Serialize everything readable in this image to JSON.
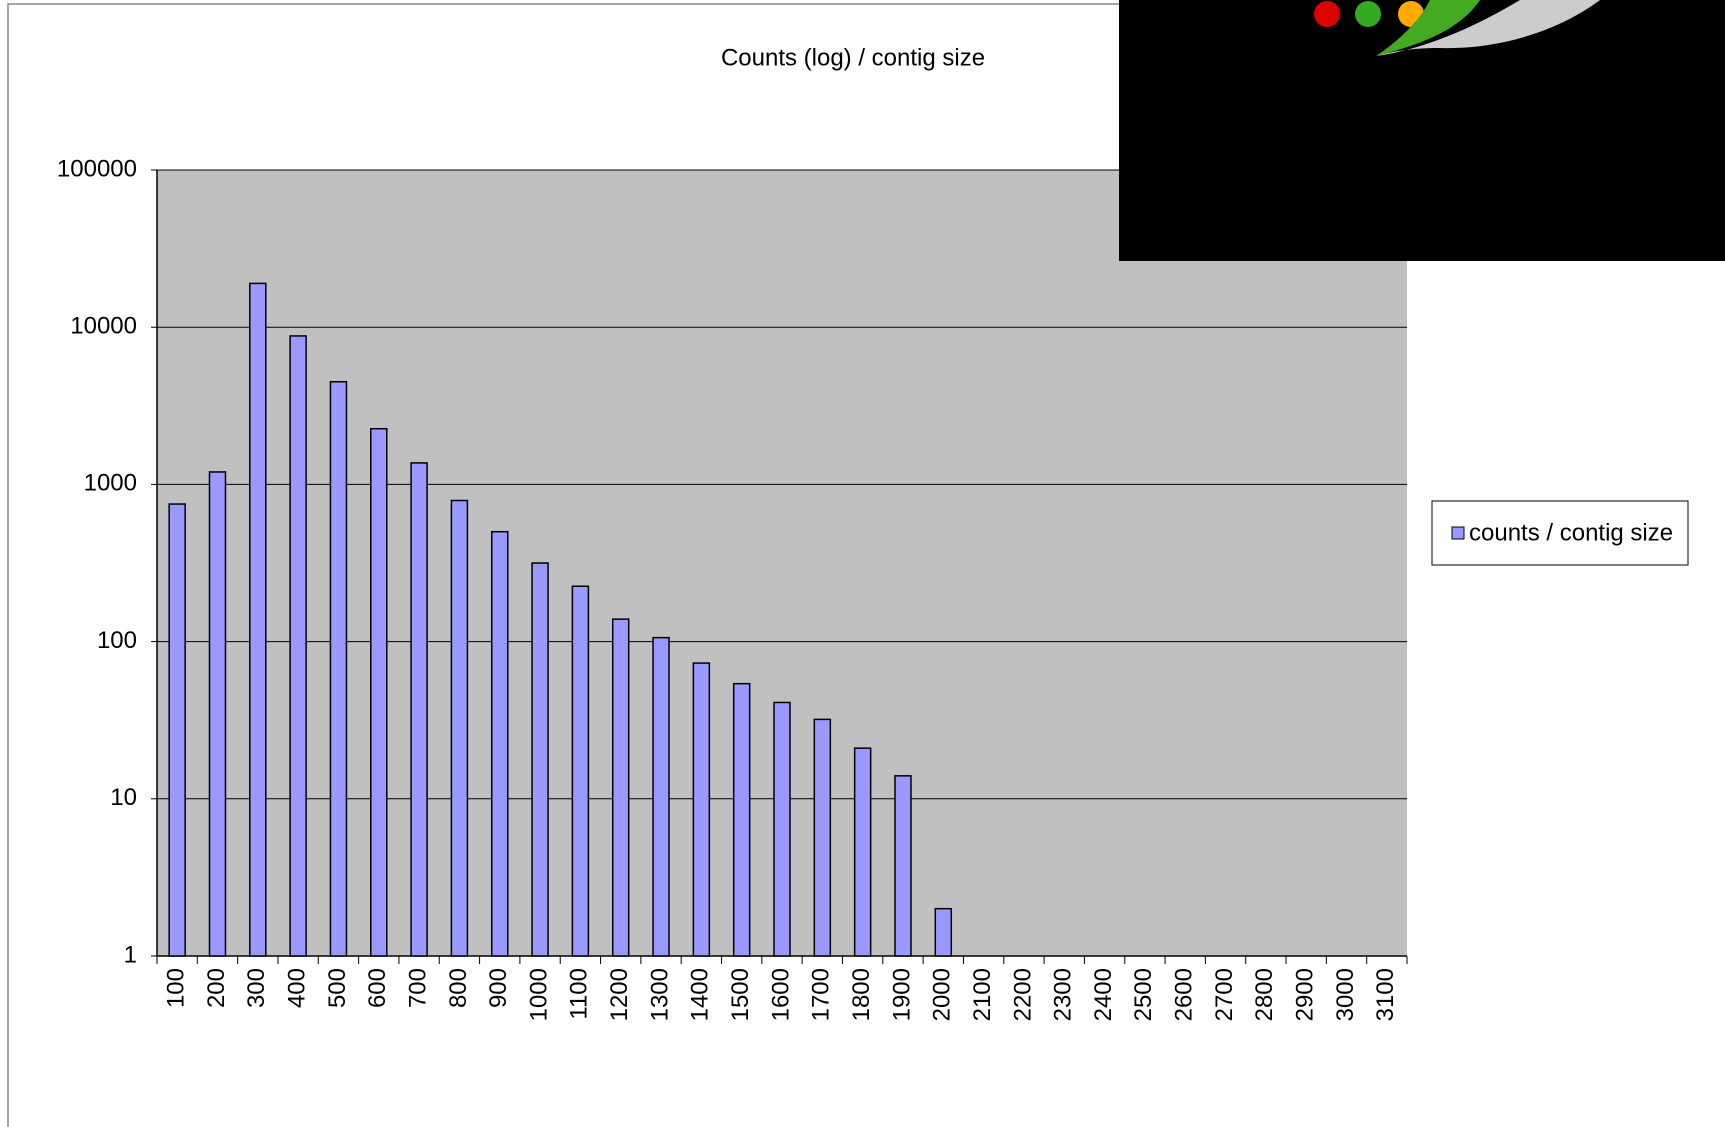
{
  "chart_data": {
    "type": "bar",
    "title": "Counts (log) / contig size",
    "categories": [
      "100",
      "200",
      "300",
      "400",
      "500",
      "600",
      "700",
      "800",
      "900",
      "1000",
      "1100",
      "1200",
      "1300",
      "1400",
      "1500",
      "1600",
      "1700",
      "1800",
      "1900",
      "2000",
      "2100",
      "2200",
      "2300",
      "2400",
      "2500",
      "2600",
      "2700",
      "2800",
      "2900",
      "3000",
      "3100"
    ],
    "series": [
      {
        "name": "counts / contig size",
        "color": "#9999ff",
        "values": [
          750,
          1200,
          19000,
          8800,
          4500,
          2260,
          1370,
          790,
          500,
          316,
          225,
          139,
          106,
          73,
          54,
          41,
          32,
          21,
          14,
          2,
          null,
          null,
          null,
          null,
          null,
          null,
          null,
          null,
          null,
          null,
          null
        ]
      }
    ],
    "ylim": [
      1,
      100000
    ],
    "yticks": [
      1,
      10,
      100,
      1000,
      10000,
      100000
    ],
    "log_scale": true,
    "grid": true,
    "legend": "right"
  }
}
